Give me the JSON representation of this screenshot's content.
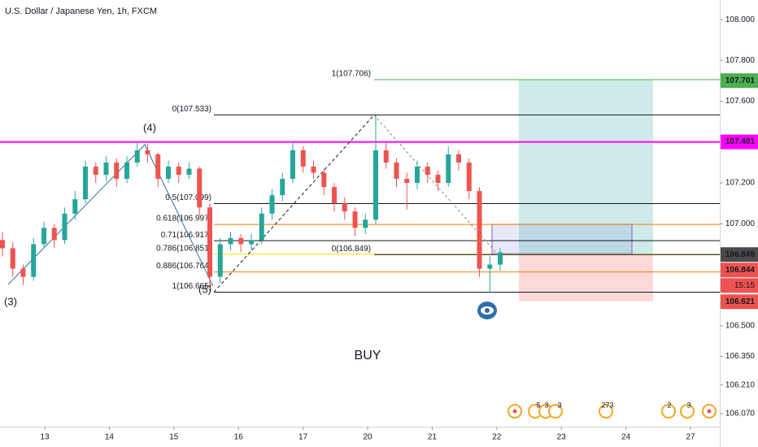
{
  "chart_data": {
    "type": "candlestick",
    "title": "U.S. Dollar / Japanese Yen, 1h, FXCM",
    "categories": [
      "13",
      "14",
      "15",
      "16",
      "17",
      "20",
      "21",
      "22",
      "23",
      "24",
      "27"
    ],
    "ylim": [
      106.006,
      108.096
    ],
    "yticks": [
      {
        "value": 108,
        "label": "108.000"
      },
      {
        "value": 107.8,
        "label": "107.800"
      },
      {
        "value": 107.6,
        "label": "107.600"
      },
      {
        "value": 107.2,
        "label": "107.200"
      },
      {
        "value": 107,
        "label": "107.000"
      },
      {
        "value": 106.5,
        "label": "106.500"
      },
      {
        "value": 106.35,
        "label": "106.350"
      },
      {
        "value": 106.21,
        "label": "106.210"
      },
      {
        "value": 106.07,
        "label": "106.070"
      }
    ],
    "up_color": "#26a69a",
    "down_color": "#ef5350",
    "candles": [
      [
        106.92,
        106.96,
        106.84,
        106.88
      ],
      [
        106.88,
        106.91,
        106.74,
        106.78
      ],
      [
        106.78,
        106.8,
        106.7,
        106.74
      ],
      [
        106.74,
        106.93,
        106.72,
        106.9
      ],
      [
        106.9,
        107.01,
        106.88,
        106.98
      ],
      [
        106.98,
        107.0,
        106.88,
        106.92
      ],
      [
        106.92,
        107.08,
        106.9,
        107.05
      ],
      [
        107.05,
        107.16,
        107.02,
        107.12
      ],
      [
        107.12,
        107.31,
        107.1,
        107.28
      ],
      [
        107.28,
        107.3,
        107.2,
        107.24
      ],
      [
        107.24,
        107.33,
        107.21,
        107.3
      ],
      [
        107.3,
        107.32,
        107.18,
        107.22
      ],
      [
        107.22,
        107.33,
        107.2,
        107.3
      ],
      [
        107.3,
        107.4,
        107.28,
        107.36
      ],
      [
        107.36,
        107.39,
        107.3,
        107.34
      ],
      [
        107.34,
        107.35,
        107.18,
        107.22
      ],
      [
        107.22,
        107.31,
        107.2,
        107.28
      ],
      [
        107.28,
        107.3,
        107.2,
        107.24
      ],
      [
        107.24,
        107.3,
        107.22,
        107.27
      ],
      [
        107.27,
        107.28,
        107.04,
        107.08
      ],
      [
        107.08,
        107.1,
        106.68,
        106.74
      ],
      [
        106.74,
        106.93,
        106.71,
        106.9
      ],
      [
        106.9,
        106.96,
        106.87,
        106.93
      ],
      [
        106.93,
        106.95,
        106.86,
        106.9
      ],
      [
        106.9,
        106.95,
        106.87,
        106.92
      ],
      [
        106.92,
        107.08,
        106.9,
        107.05
      ],
      [
        107.05,
        107.17,
        107.02,
        107.14
      ],
      [
        107.14,
        107.25,
        107.11,
        107.22
      ],
      [
        107.22,
        107.4,
        107.2,
        107.36
      ],
      [
        107.36,
        107.38,
        107.25,
        107.28
      ],
      [
        107.28,
        107.31,
        107.22,
        107.25
      ],
      [
        107.25,
        107.27,
        107.14,
        107.18
      ],
      [
        107.18,
        107.2,
        107.06,
        107.1
      ],
      [
        107.1,
        107.13,
        107.02,
        107.06
      ],
      [
        107.06,
        107.08,
        106.94,
        106.98
      ],
      [
        106.98,
        107.05,
        106.95,
        107.02
      ],
      [
        107.02,
        107.53,
        107.0,
        107.36
      ],
      [
        107.36,
        107.4,
        107.27,
        107.3
      ],
      [
        107.3,
        107.32,
        107.18,
        107.22
      ],
      [
        107.22,
        107.25,
        107.07,
        107.2
      ],
      [
        107.2,
        107.31,
        107.17,
        107.28
      ],
      [
        107.28,
        107.3,
        107.2,
        107.24
      ],
      [
        107.24,
        107.26,
        107.16,
        107.2
      ],
      [
        107.2,
        107.38,
        107.18,
        107.34
      ],
      [
        107.34,
        107.36,
        107.26,
        107.3
      ],
      [
        107.3,
        107.32,
        107.12,
        107.16
      ],
      [
        107.16,
        107.18,
        106.74,
        106.78
      ],
      [
        106.78,
        106.84,
        106.66,
        106.8
      ],
      [
        106.8,
        106.88,
        106.77,
        106.86
      ]
    ],
    "fib_left": [
      {
        "value": 107.533,
        "label": "0(107.533)",
        "color": "#131722"
      },
      {
        "value": 107.099,
        "label": "0.5(107.099)",
        "color": "#131722"
      },
      {
        "value": 106.997,
        "label": "0.618(106.997)",
        "color": "#f57c00"
      },
      {
        "value": 106.917,
        "label": "0.71(106.917)",
        "color": "#131722"
      },
      {
        "value": 106.851,
        "label": "0.786(106.851)",
        "color": "#f5e000"
      },
      {
        "value": 106.764,
        "label": "0.886(106.764)",
        "color": "#f57c00"
      },
      {
        "value": 106.665,
        "label": "1(106.665)",
        "color": "#131722"
      }
    ],
    "fib_right": [
      {
        "value": 107.706,
        "label": "1(107.706)",
        "color": "#4caf50"
      },
      {
        "value": 106.849,
        "label": "0(106.849)",
        "color": "#131722"
      }
    ],
    "resistance": {
      "value": 107.401,
      "label": "107.401",
      "color": "#ff00ff"
    },
    "price_labels": [
      {
        "value": 107.701,
        "label": "107.701",
        "color": "#4caf50"
      },
      {
        "value": 106.849,
        "label": "106.849",
        "color": "#4a4a4a"
      },
      {
        "value": 106.844,
        "label": "106.844",
        "color": "#ef5350"
      },
      {
        "value": 106.621,
        "label": "106.621",
        "color": "#ef5350"
      }
    ],
    "countdown": "15:15",
    "waves": [
      "(3)",
      "(4)",
      "(5)"
    ],
    "annotation": "BUY",
    "events": [
      "5",
      "3",
      "3",
      "273",
      "2",
      "3"
    ]
  }
}
